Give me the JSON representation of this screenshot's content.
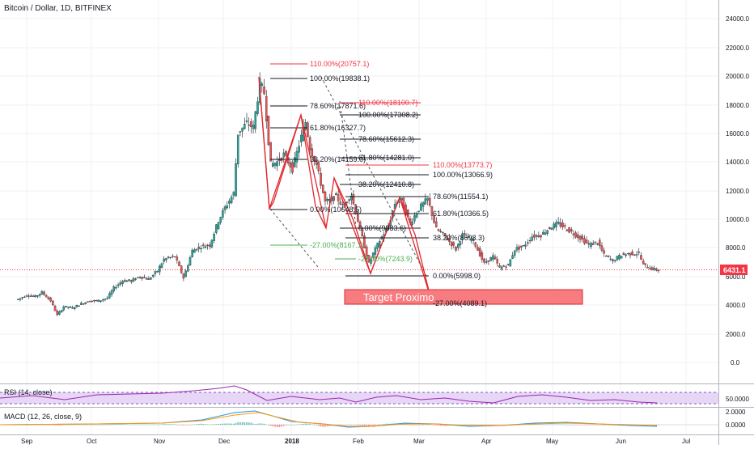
{
  "header": {
    "title": "Bitcoin / Dollar, 1D, BITFINEX"
  },
  "price_axis": {
    "ticks": [
      "24000.0",
      "22000.0",
      "20000.0",
      "18000.0",
      "16000.0",
      "14000.0",
      "12000.0",
      "10000.0",
      "8000.0",
      "6000.0",
      "4000.0",
      "2000.0",
      "0.0"
    ]
  },
  "time_axis": {
    "labels": [
      "Sep",
      "Oct",
      "Nov",
      "Dec",
      "2018",
      "Feb",
      "Mar",
      "Apr",
      "May",
      "Jun",
      "Jul"
    ]
  },
  "last_price": {
    "label": "6431.1",
    "color": "#f23645"
  },
  "target_box": {
    "label": "Target Proximo",
    "color": "#f77c80"
  },
  "fib_labels": [
    {
      "text": "110.00%(20757.1)",
      "color": "#f23645"
    },
    {
      "text": "100.00%(19838.1)",
      "color": "#131722"
    },
    {
      "text": "78.60%(17871.6)",
      "color": "#131722"
    },
    {
      "text": "61.80%(16327.7)",
      "color": "#131722"
    },
    {
      "text": "38.20%(14159.0)",
      "color": "#131722"
    },
    {
      "text": "0.00%(10648.5)",
      "color": "#131722"
    },
    {
      "text": "-27.00%(8167.1)",
      "color": "#4caf50"
    },
    {
      "text": "110.00%(18100.7)",
      "color": "#f23645"
    },
    {
      "text": "100.00%(17308.2)",
      "color": "#131722"
    },
    {
      "text": "78.60%(15612.3)",
      "color": "#131722"
    },
    {
      "text": "61.80%(14281.0)",
      "color": "#131722"
    },
    {
      "text": "38.20%(12410.8)",
      "color": "#131722"
    },
    {
      "text": "0.00%(9383.6)",
      "color": "#131722"
    },
    {
      "text": "-27.00%(7243.9)",
      "color": "#4caf50"
    },
    {
      "text": "110.00%(13773.7)",
      "color": "#f23645"
    },
    {
      "text": "100.00%(13066.9)",
      "color": "#131722"
    },
    {
      "text": "78.60%(11554.1)",
      "color": "#131722"
    },
    {
      "text": "61.80%(10366.5)",
      "color": "#131722"
    },
    {
      "text": "38.20%(8698.3)",
      "color": "#131722"
    },
    {
      "text": "0.00%(5998.0)",
      "color": "#131722"
    },
    {
      "text": "-27.00%(4089.1)",
      "color": "#131722"
    }
  ],
  "rsi": {
    "label": "RSI (14, close)",
    "ticks": [
      "50.0000"
    ]
  },
  "macd": {
    "label": "MACD (12, 26, close, 9)",
    "ticks": [
      "2.0000",
      "0.0000"
    ]
  },
  "colors": {
    "up": "#26a69a",
    "down": "#ef5350",
    "pattern": "#e0282e",
    "rsi_band": "#e3cff5",
    "rsi_line": "#9c27b0",
    "macd_line": "#2196f3",
    "signal_line": "#ff9800"
  },
  "chart_data": {
    "type": "candlestick",
    "title": "Bitcoin / Dollar, 1D, BITFINEX",
    "ylim": [
      0,
      24000
    ],
    "x_labels": [
      "Sep",
      "Oct",
      "Nov",
      "Dec",
      "2018",
      "Feb",
      "Mar",
      "Apr",
      "May",
      "Jun",
      "Jul"
    ],
    "close_series": [
      [
        "2017-08-28",
        4400
      ],
      [
        "2017-09-01",
        4700
      ],
      [
        "2017-09-05",
        4600
      ],
      [
        "2017-09-08",
        4900
      ],
      [
        "2017-09-12",
        4300
      ],
      [
        "2017-09-15",
        3300
      ],
      [
        "2017-09-18",
        3900
      ],
      [
        "2017-09-22",
        3800
      ],
      [
        "2017-09-26",
        4100
      ],
      [
        "2017-09-30",
        4300
      ],
      [
        "2017-10-04",
        4300
      ],
      [
        "2017-10-08",
        4500
      ],
      [
        "2017-10-11",
        5200
      ],
      [
        "2017-10-15",
        5700
      ],
      [
        "2017-10-19",
        5700
      ],
      [
        "2017-10-23",
        6000
      ],
      [
        "2017-10-27",
        5800
      ],
      [
        "2017-10-31",
        6400
      ],
      [
        "2017-11-03",
        7200
      ],
      [
        "2017-11-08",
        7400
      ],
      [
        "2017-11-12",
        5900
      ],
      [
        "2017-11-16",
        7800
      ],
      [
        "2017-11-20",
        8100
      ],
      [
        "2017-11-24",
        8200
      ],
      [
        "2017-11-28",
        9900
      ],
      [
        "2017-12-01",
        10800
      ],
      [
        "2017-12-05",
        11800
      ],
      [
        "2017-12-07",
        16000
      ],
      [
        "2017-12-11",
        16700
      ],
      [
        "2017-12-14",
        16400
      ],
      [
        "2017-12-17",
        19500
      ],
      [
        "2017-12-19",
        18800
      ],
      [
        "2017-12-22",
        13800
      ],
      [
        "2017-12-25",
        14000
      ],
      [
        "2017-12-28",
        14500
      ],
      [
        "2018-01-01",
        13500
      ],
      [
        "2018-01-04",
        15200
      ],
      [
        "2018-01-07",
        16800
      ],
      [
        "2018-01-09",
        15000
      ],
      [
        "2018-01-12",
        13800
      ],
      [
        "2018-01-16",
        11200
      ],
      [
        "2018-01-18",
        11300
      ],
      [
        "2018-01-21",
        11600
      ],
      [
        "2018-01-24",
        10900
      ],
      [
        "2018-01-28",
        11700
      ],
      [
        "2018-02-01",
        9300
      ],
      [
        "2018-02-05",
        6900
      ],
      [
        "2018-02-07",
        7600
      ],
      [
        "2018-02-10",
        8500
      ],
      [
        "2018-02-14",
        9500
      ],
      [
        "2018-02-17",
        11100
      ],
      [
        "2018-02-20",
        11300
      ],
      [
        "2018-02-24",
        9700
      ],
      [
        "2018-02-27",
        10500
      ],
      [
        "2018-03-01",
        10900
      ],
      [
        "2018-03-04",
        11400
      ],
      [
        "2018-03-08",
        9300
      ],
      [
        "2018-03-12",
        8800
      ],
      [
        "2018-03-17",
        7900
      ],
      [
        "2018-03-20",
        8900
      ],
      [
        "2018-03-25",
        8500
      ],
      [
        "2018-03-30",
        6900
      ],
      [
        "2018-04-03",
        7400
      ],
      [
        "2018-04-06",
        6600
      ],
      [
        "2018-04-10",
        6800
      ],
      [
        "2018-04-13",
        7900
      ],
      [
        "2018-04-17",
        8100
      ],
      [
        "2018-04-21",
        8800
      ],
      [
        "2018-04-25",
        8900
      ],
      [
        "2018-04-29",
        9400
      ],
      [
        "2018-05-03",
        9700
      ],
      [
        "2018-05-06",
        9400
      ],
      [
        "2018-05-10",
        9000
      ],
      [
        "2018-05-13",
        8700
      ],
      [
        "2018-05-17",
        8200
      ],
      [
        "2018-05-21",
        8400
      ],
      [
        "2018-05-24",
        7500
      ],
      [
        "2018-05-28",
        7100
      ],
      [
        "2018-06-01",
        7500
      ],
      [
        "2018-06-05",
        7600
      ],
      [
        "2018-06-09",
        7600
      ],
      [
        "2018-06-11",
        6800
      ],
      [
        "2018-06-14",
        6600
      ],
      [
        "2018-06-16",
        6500
      ],
      [
        "2018-06-18",
        6431.1
      ]
    ]
  }
}
